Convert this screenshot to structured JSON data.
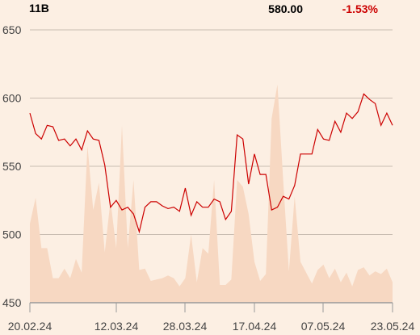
{
  "header": {
    "volume_label": "11B",
    "last_price": "580.00",
    "change_pct": "-1.53%"
  },
  "colors": {
    "background": "#fcefe3",
    "price_line": "#cc0000",
    "volume_fill": "#f7d8c2",
    "grid": "#c9bdb2",
    "change_negative": "#cc0000",
    "text": "#000000"
  },
  "chart_data": {
    "type": "line",
    "ylim": [
      450,
      650
    ],
    "yticks": [
      650,
      600,
      550,
      500,
      450
    ],
    "xticks": [
      "20.02.24",
      "12.03.24",
      "28.03.24",
      "17.04.24",
      "07.05.24",
      "23.05.24"
    ],
    "grid": true,
    "series": [
      {
        "values": [
          589,
          574,
          570,
          580,
          579,
          569,
          570,
          565,
          570,
          562,
          576,
          570,
          569,
          551,
          520,
          525,
          518,
          520,
          515,
          502,
          520,
          524,
          524,
          521,
          519,
          520,
          517,
          534,
          514,
          524,
          520,
          520,
          526,
          524,
          511,
          517,
          573,
          570,
          537,
          559,
          544,
          544,
          518,
          520,
          528,
          526,
          536,
          559,
          559,
          559,
          577,
          570,
          569,
          583,
          575,
          589,
          585,
          590,
          603,
          599,
          596,
          580,
          589,
          580
        ]
      }
    ],
    "volume_values": [
      508,
      527,
      490,
      490,
      468,
      468,
      475,
      468,
      482,
      472,
      565,
      518,
      538,
      487,
      525,
      490,
      580,
      490,
      540,
      474,
      475,
      466,
      467,
      468,
      470,
      468,
      462,
      468,
      500,
      465,
      490,
      486,
      540,
      463,
      463,
      467,
      540,
      535,
      515,
      480,
      466,
      471,
      585,
      610,
      540,
      473,
      528,
      480,
      472,
      464,
      474,
      478,
      468,
      475,
      465,
      472,
      462,
      474,
      476,
      470,
      473,
      471,
      475,
      465
    ]
  }
}
